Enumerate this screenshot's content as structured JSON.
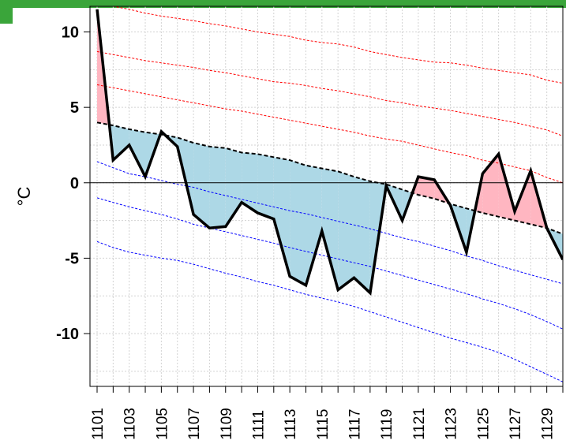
{
  "frame": {
    "accent_color": "#3aa53a"
  },
  "chart_data": {
    "type": "area",
    "title": "",
    "xlabel": "",
    "ylabel": "°C",
    "ylim": [
      -13.5,
      11.7
    ],
    "yticks": [
      10,
      5,
      0,
      -5,
      -10
    ],
    "ytick_labels": [
      "10",
      "5",
      "0",
      "-5",
      "-10"
    ],
    "grid": true,
    "legend": "none",
    "x": [
      1101,
      1102,
      1103,
      1104,
      1105,
      1106,
      1107,
      1108,
      1109,
      1110,
      1111,
      1112,
      1113,
      1114,
      1115,
      1116,
      1117,
      1118,
      1119,
      1120,
      1121,
      1122,
      1123,
      1124,
      1125,
      1126,
      1127,
      1128,
      1129,
      1130
    ],
    "xtick_labels": [
      "1101",
      "1103",
      "1105",
      "1107",
      "1109",
      "1111",
      "1113",
      "1115",
      "1117",
      "1119",
      "1121",
      "1123",
      "1125",
      "1127",
      "1129"
    ],
    "observed": [
      11.5,
      1.5,
      2.5,
      0.4,
      3.4,
      2.4,
      -2.1,
      -3.0,
      -2.9,
      -1.3,
      -2.0,
      -2.4,
      -6.2,
      -6.8,
      -3.2,
      -7.1,
      -6.3,
      -7.3,
      -0.2,
      -2.5,
      0.4,
      0.2,
      -1.5,
      -4.6,
      0.6,
      1.9,
      -1.9,
      0.8,
      -3.0,
      -5.1
    ],
    "normal": [
      4.0,
      3.8,
      3.55,
      3.35,
      3.2,
      3.0,
      2.65,
      2.4,
      2.3,
      2.0,
      1.9,
      1.7,
      1.5,
      1.15,
      0.95,
      0.75,
      0.4,
      0.1,
      -0.1,
      -0.45,
      -0.8,
      -1.05,
      -1.4,
      -1.7,
      -2.0,
      -2.25,
      -2.5,
      -2.75,
      -3.0,
      -3.4
    ],
    "upper_bands": [
      [
        11.9,
        11.7,
        11.5,
        11.25,
        11.05,
        10.9,
        10.75,
        10.55,
        10.4,
        10.2,
        10.0,
        9.85,
        9.7,
        9.45,
        9.3,
        9.2,
        9.0,
        8.7,
        8.5,
        8.3,
        8.15,
        8.0,
        7.95,
        7.8,
        7.6,
        7.45,
        7.3,
        7.15,
        6.8,
        6.6
      ],
      [
        8.7,
        8.5,
        8.3,
        8.1,
        7.95,
        7.8,
        7.65,
        7.45,
        7.3,
        7.1,
        6.9,
        6.7,
        6.6,
        6.45,
        6.25,
        6.1,
        5.9,
        5.7,
        5.45,
        5.3,
        5.1,
        4.95,
        4.8,
        4.6,
        4.4,
        4.2,
        4.0,
        3.75,
        3.5,
        3.1
      ],
      [
        6.5,
        6.3,
        6.1,
        5.9,
        5.7,
        5.5,
        5.3,
        5.1,
        4.9,
        4.75,
        4.55,
        4.35,
        4.15,
        3.95,
        3.75,
        3.55,
        3.35,
        3.1,
        2.9,
        2.75,
        2.5,
        2.25,
        2.0,
        1.8,
        1.5,
        1.3,
        1.05,
        0.8,
        0.35,
        0.0
      ]
    ],
    "lower_bands": [
      [
        1.4,
        1.0,
        0.6,
        0.4,
        0.15,
        -0.1,
        -0.3,
        -0.6,
        -0.85,
        -1.1,
        -1.35,
        -1.6,
        -1.85,
        -2.05,
        -2.3,
        -2.55,
        -2.8,
        -3.05,
        -3.35,
        -3.65,
        -3.9,
        -4.2,
        -4.5,
        -4.85,
        -5.15,
        -5.5,
        -5.8,
        -6.1,
        -6.4,
        -6.7
      ],
      [
        -1.0,
        -1.3,
        -1.6,
        -1.85,
        -2.1,
        -2.4,
        -2.75,
        -3.0,
        -3.25,
        -3.5,
        -3.75,
        -4.0,
        -4.3,
        -4.55,
        -4.8,
        -5.05,
        -5.3,
        -5.55,
        -5.85,
        -6.15,
        -6.45,
        -6.75,
        -7.05,
        -7.35,
        -7.7,
        -8.0,
        -8.35,
        -8.75,
        -9.2,
        -9.7
      ],
      [
        -3.9,
        -4.3,
        -4.6,
        -4.8,
        -5.0,
        -5.15,
        -5.4,
        -5.7,
        -6.0,
        -6.25,
        -6.55,
        -6.8,
        -7.1,
        -7.4,
        -7.65,
        -7.9,
        -8.2,
        -8.55,
        -8.9,
        -9.25,
        -9.6,
        -9.95,
        -10.3,
        -10.6,
        -10.9,
        -11.25,
        -11.7,
        -12.2,
        -12.7,
        -13.2
      ]
    ],
    "colors": {
      "observed": "#000000",
      "normal": "#000000",
      "upper_bands": "#ff0000",
      "lower_bands": "#0000ff",
      "above_fill": "#ffb6c1",
      "below_fill": "#add8e6",
      "grid": "#d3d3d3",
      "zero_line": "#000000"
    }
  }
}
